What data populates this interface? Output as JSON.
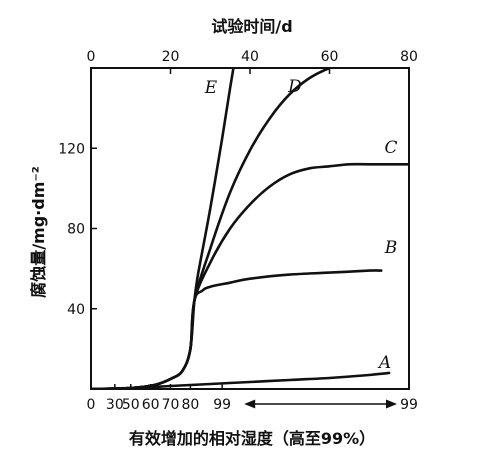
{
  "chart_data": {
    "type": "line",
    "top_axis": {
      "label": "试验时间/d",
      "ticks": [
        0,
        20,
        40,
        60,
        80
      ],
      "range": [
        0,
        80
      ]
    },
    "left_axis": {
      "label": "腐蚀量/mg·dm⁻²",
      "ticks": [
        40,
        80,
        120
      ],
      "range": [
        0,
        160
      ]
    },
    "bottom_axis": {
      "label": "有效增加的相对湿度（高至99%）",
      "tick_labels": [
        "0",
        "30",
        "50",
        "60",
        "70",
        "80",
        "99",
        "99"
      ],
      "tick_days": [
        0,
        6,
        10,
        15,
        20,
        25,
        33,
        80
      ]
    },
    "series": [
      {
        "name": "E",
        "x": [
          0,
          10,
          16,
          20,
          23,
          25,
          26,
          27,
          30,
          33,
          35,
          36
        ],
        "y": [
          0,
          0.5,
          2,
          5,
          9,
          20,
          44,
          58,
          90,
          125,
          150,
          162
        ]
      },
      {
        "name": "D",
        "x": [
          0,
          10,
          16,
          20,
          23,
          25,
          26,
          30,
          35,
          40,
          45,
          50,
          55,
          60,
          65
        ],
        "y": [
          0,
          0.5,
          2,
          5,
          9,
          20,
          44,
          70,
          98,
          119,
          135,
          147,
          155,
          160,
          163
        ]
      },
      {
        "name": "C",
        "x": [
          0,
          10,
          16,
          20,
          23,
          25,
          26,
          30,
          35,
          40,
          45,
          50,
          55,
          60,
          65,
          70,
          80
        ],
        "y": [
          0,
          0.5,
          2,
          5,
          9,
          20,
          44,
          63,
          80,
          92,
          101,
          107,
          110,
          111,
          112,
          112,
          112
        ]
      },
      {
        "name": "B",
        "x": [
          0,
          10,
          16,
          20,
          23,
          25,
          26,
          28,
          30,
          35,
          40,
          50,
          60,
          70,
          73
        ],
        "y": [
          0,
          0.5,
          2,
          5,
          9,
          20,
          44,
          49,
          51,
          53,
          55,
          57,
          58,
          59,
          59
        ]
      },
      {
        "name": "A",
        "x": [
          0,
          10,
          20,
          30,
          40,
          50,
          60,
          70,
          75
        ],
        "y": [
          0,
          0.5,
          1.5,
          2.5,
          3.5,
          4.5,
          5.5,
          7,
          8
        ]
      }
    ]
  }
}
